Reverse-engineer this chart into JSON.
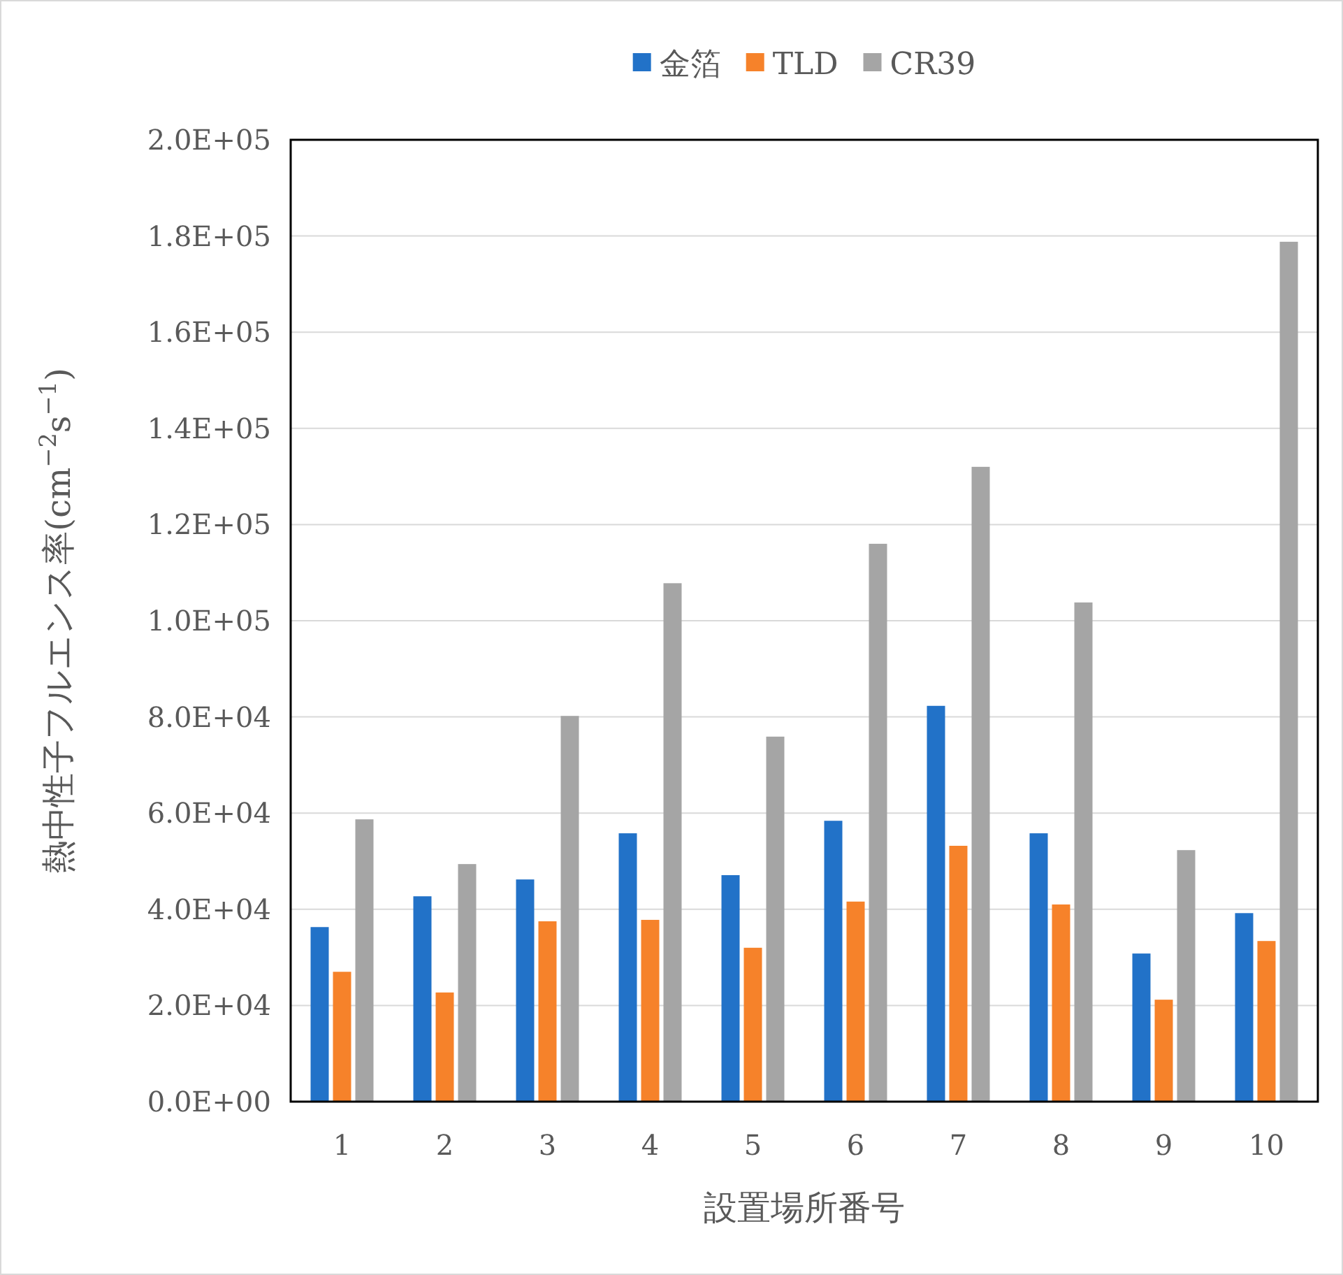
{
  "chart_data": {
    "type": "bar",
    "xlabel": "設置場所番号",
    "ylabel": "熱中性子フルエンス率(cm$^{−2}$s$^{−1}$)",
    "categories": [
      "1",
      "2",
      "3",
      "4",
      "5",
      "6",
      "7",
      "8",
      "9",
      "10"
    ],
    "series": [
      {
        "name": "金箔",
        "color": "#2272c8",
        "values": [
          36300,
          42700,
          46200,
          55800,
          47100,
          58400,
          82300,
          55800,
          30800,
          39200
        ]
      },
      {
        "name": "TLD",
        "color": "#f6822a",
        "values": [
          27000,
          22700,
          37500,
          37800,
          32000,
          41600,
          53200,
          41000,
          21200,
          33400
        ]
      },
      {
        "name": "CR39",
        "color": "#a5a5a5",
        "values": [
          58700,
          49400,
          80200,
          107800,
          75900,
          116000,
          132000,
          103800,
          52300,
          178800
        ]
      }
    ],
    "ylim": [
      0,
      200000
    ],
    "yticks": [
      {
        "value": 0,
        "label": "0.0E+00"
      },
      {
        "value": 20000,
        "label": "2.0E+04"
      },
      {
        "value": 40000,
        "label": "4.0E+04"
      },
      {
        "value": 60000,
        "label": "6.0E+04"
      },
      {
        "value": 80000,
        "label": "8.0E+04"
      },
      {
        "value": 100000,
        "label": "1.0E+05"
      },
      {
        "value": 120000,
        "label": "1.2E+05"
      },
      {
        "value": 140000,
        "label": "1.4E+05"
      },
      {
        "value": 160000,
        "label": "1.6E+05"
      },
      {
        "value": 180000,
        "label": "1.8E+05"
      },
      {
        "value": 200000,
        "label": "2.0E+05"
      }
    ],
    "grid": "y",
    "legend": "top"
  }
}
